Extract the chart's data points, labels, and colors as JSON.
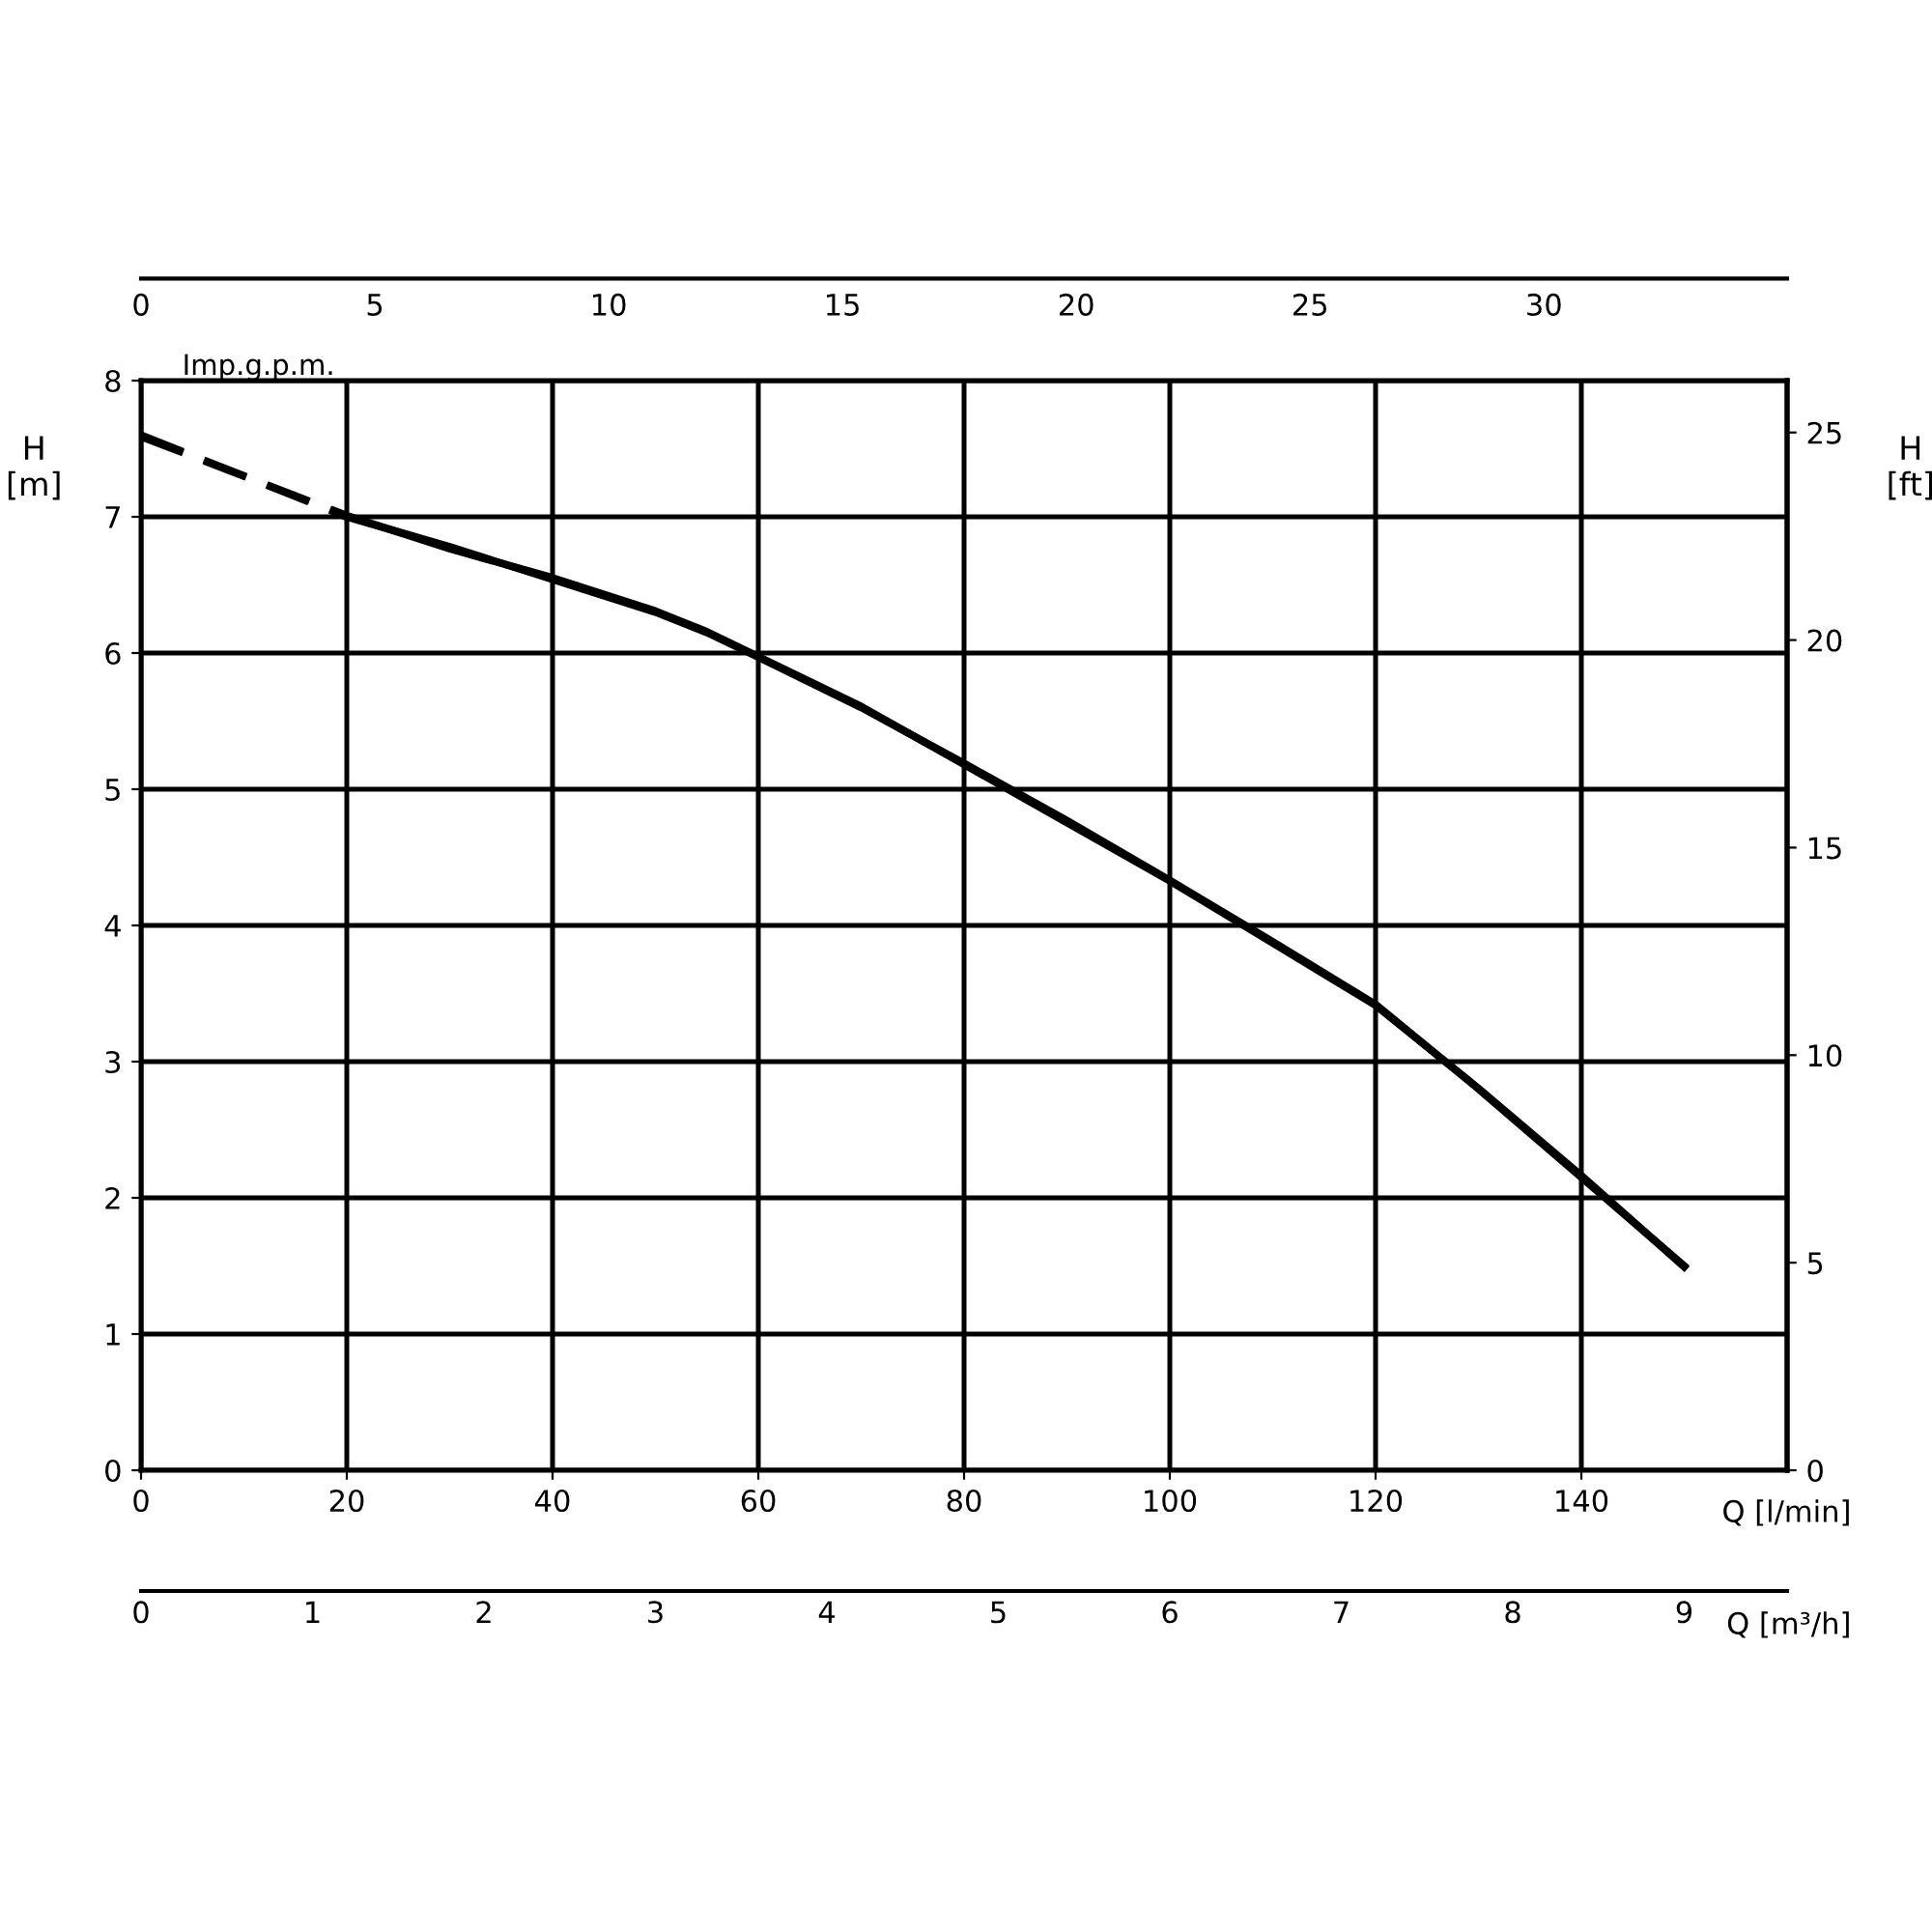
{
  "chart_data": [
    {
      "type": "line",
      "xlabel": "Q [l/min]",
      "ylabel": "H\n[m]",
      "x2label": "Imp.g.p.m.",
      "xlim": [
        0,
        160
      ],
      "xticks": [
        0,
        20,
        40,
        60,
        80,
        100,
        120,
        140
      ],
      "ylim": [
        0,
        8
      ],
      "yticks": [
        0,
        1,
        2,
        3,
        4,
        5,
        6,
        7,
        8
      ],
      "x2lim": [
        0,
        35.2
      ],
      "x2ticks": [
        0,
        5,
        10,
        15,
        20,
        25,
        30
      ],
      "grid": true,
      "marker": "none",
      "series": [
        {
          "color": "#000000",
          "line_style": "dashed",
          "x": [
            0,
            20
          ],
          "values": [
            7.6,
            7.0
          ]
        },
        {
          "color": "#000000",
          "line_style": "solid",
          "x": [
            20,
            30,
            40,
            50,
            55,
            60,
            70,
            80,
            90,
            100,
            110,
            120,
            130,
            140,
            150
          ],
          "values": [
            7.0,
            6.78,
            6.54,
            6.3,
            6.15,
            5.97,
            5.6,
            5.19,
            4.77,
            4.33,
            3.88,
            3.42,
            2.8,
            2.15,
            1.5
          ]
        }
      ]
    },
    {
      "type": "line",
      "xlabel": "Q [m³/h]",
      "ylabel": "H\n[ft]",
      "xlim": [
        0,
        9.6
      ],
      "xticks": [
        0,
        1,
        2,
        3,
        4,
        5,
        6,
        7,
        8,
        9
      ],
      "ylim": [
        0,
        26.25
      ],
      "yticks": [
        0,
        5,
        10,
        15,
        20,
        25
      ],
      "marker": "none",
      "series": [
        {
          "color": "#000000",
          "line_style": "dashed",
          "x": [
            0,
            1.2
          ],
          "values": [
            24.9,
            23.0
          ]
        },
        {
          "color": "#000000",
          "line_style": "solid",
          "x": [
            1.2,
            1.8,
            2.4,
            3.0,
            3.3,
            3.6,
            4.2,
            4.8,
            5.4,
            6.0,
            6.6,
            7.2,
            7.8,
            8.4,
            9.0
          ],
          "values": [
            23.0,
            22.2,
            21.5,
            20.7,
            20.2,
            19.6,
            18.4,
            17.0,
            15.6,
            14.2,
            12.7,
            11.2,
            9.2,
            7.1,
            4.9
          ]
        }
      ]
    }
  ]
}
